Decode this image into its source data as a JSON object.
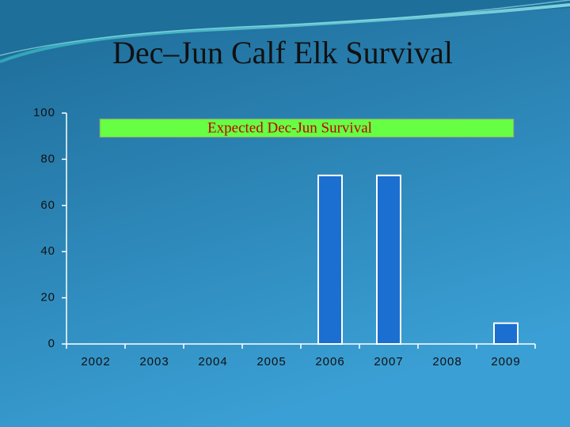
{
  "chart_data": {
    "type": "bar",
    "title": "Dec–Jun Calf Elk Survival",
    "categories": [
      "2002",
      "2003",
      "2004",
      "2005",
      "2006",
      "2007",
      "2008",
      "2009"
    ],
    "values": [
      null,
      null,
      null,
      null,
      73,
      73,
      null,
      9
    ],
    "color": "#1a6fd1",
    "ylim": [
      0,
      100
    ],
    "yticks": [
      0,
      20,
      40,
      60,
      80,
      100
    ],
    "grid": false,
    "band": {
      "label": "Expected Dec-Jun Survival",
      "range": [
        89.5,
        97.5
      ],
      "color": "#66ff44"
    }
  }
}
